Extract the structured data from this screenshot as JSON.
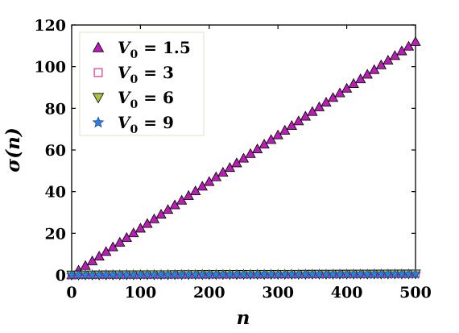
{
  "chart_data": {
    "type": "scatter",
    "xlabel": "σ(n)",
    "xlabel_note": "",
    "axis_labels": {
      "x": "n",
      "y": "σ(n)"
    },
    "xlim": [
      0,
      500
    ],
    "ylim": [
      0,
      120
    ],
    "x_ticks": [
      "0",
      "100",
      "200",
      "300",
      "400",
      "500"
    ],
    "y_ticks": [
      "0",
      "20",
      "40",
      "60",
      "80",
      "100",
      "120"
    ],
    "grid": false,
    "legend_position": "top-left",
    "series": [
      {
        "name": "V_0 = 1.5",
        "label_main": "V",
        "label_sub": "0",
        "label_rest": " = 1.5",
        "marker": "triangle-up",
        "color": "#b81eb4",
        "x_start": 0,
        "x_end": 500,
        "x_step": 10,
        "y_start": 0,
        "y_end": 112
      },
      {
        "name": "V_0 = 3",
        "label_main": "V",
        "label_sub": "0",
        "label_rest": " = 3",
        "marker": "square",
        "color": "#d6339a",
        "x_start": 0,
        "x_end": 500,
        "x_step": 10,
        "y_start": 0,
        "y_end": 0.6
      },
      {
        "name": "V_0 = 6",
        "label_main": "V",
        "label_sub": "0",
        "label_rest": " = 6",
        "marker": "triangle-down",
        "color": "#a8c43a",
        "x_start": 0,
        "x_end": 500,
        "x_step": 10,
        "y_start": 0,
        "y_end": 0.5
      },
      {
        "name": "V_0 = 9",
        "label_main": "V",
        "label_sub": "0",
        "label_rest": " = 9",
        "marker": "star",
        "color": "#2a7fe0",
        "x_start": 0,
        "x_end": 500,
        "x_step": 10,
        "y_start": 0,
        "y_end": 0.4
      }
    ]
  }
}
